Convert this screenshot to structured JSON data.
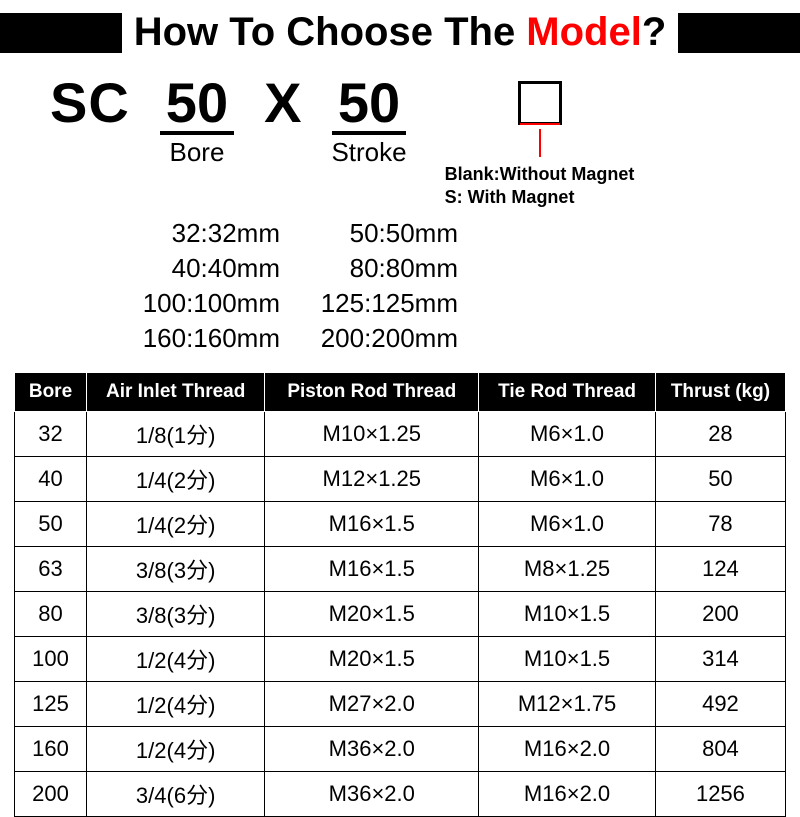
{
  "header": {
    "title_prefix": "How To Choose The ",
    "title_accent": "Model",
    "title_suffix": "?",
    "accent_color": "#ff0000",
    "bar_color": "#000000"
  },
  "model": {
    "prefix": "SC",
    "bore_value": "50",
    "bore_label": "Bore",
    "separator": "X",
    "stroke_value": "50",
    "stroke_label": "Stroke",
    "suffix_box_border": "#000000",
    "suffix_pointer_color": "#ff0000",
    "legend_blank": "Blank:Without Magnet",
    "legend_s": "S: With Magnet"
  },
  "bore_options": {
    "rows": [
      {
        "left": "32:32mm",
        "right": "50:50mm"
      },
      {
        "left": "40:40mm",
        "right": "80:80mm"
      },
      {
        "left": "100:100mm",
        "right": "125:125mm"
      },
      {
        "left": "160:160mm",
        "right": "200:200mm"
      }
    ]
  },
  "spec_table": {
    "type": "table",
    "header_bg": "#000000",
    "header_fg": "#ffffff",
    "cell_border": "#000000",
    "columns": [
      "Bore",
      "Air Inlet Thread",
      "Piston Rod Thread",
      "Tie Rod Thread",
      "Thrust (kg)"
    ],
    "rows": [
      [
        "32",
        "1/8(1分)",
        "M10×1.25",
        "M6×1.0",
        "28"
      ],
      [
        "40",
        "1/4(2分)",
        "M12×1.25",
        "M6×1.0",
        "50"
      ],
      [
        "50",
        "1/4(2分)",
        "M16×1.5",
        "M6×1.0",
        "78"
      ],
      [
        "63",
        "3/8(3分)",
        "M16×1.5",
        "M8×1.25",
        "124"
      ],
      [
        "80",
        "3/8(3分)",
        "M20×1.5",
        "M10×1.5",
        "200"
      ],
      [
        "100",
        "1/2(4分)",
        "M20×1.5",
        "M10×1.5",
        "314"
      ],
      [
        "125",
        "1/2(4分)",
        "M27×2.0",
        "M12×1.75",
        "492"
      ],
      [
        "160",
        "1/2(4分)",
        "M36×2.0",
        "M16×2.0",
        "804"
      ],
      [
        "200",
        "3/4(6分)",
        "M36×2.0",
        "M16×2.0",
        "1256"
      ]
    ]
  }
}
